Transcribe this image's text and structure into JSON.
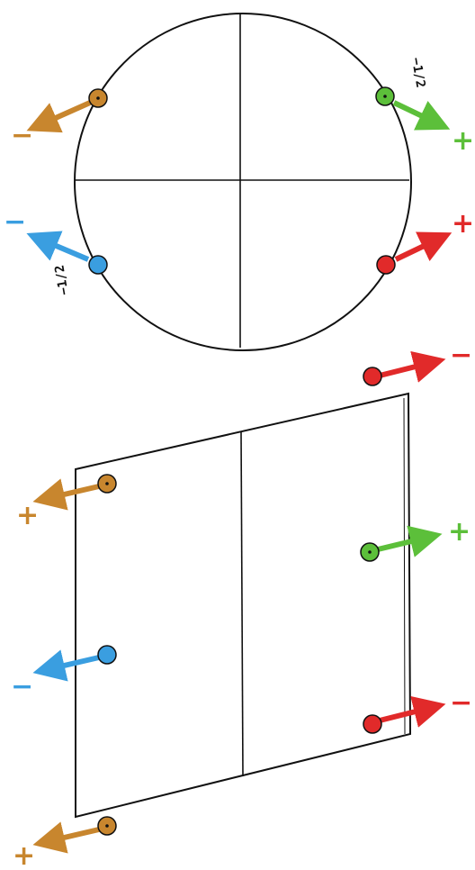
{
  "colors": {
    "orange": "#c8862e",
    "green": "#5cbf3a",
    "blue": "#3a9ee0",
    "red": "#e12a2a",
    "ink": "#111111"
  },
  "circle_view": {
    "labels": {
      "orange_sign": "−",
      "green_sign": "+",
      "blue_sign": "−",
      "red_sign": "+",
      "green_note": "−1/2",
      "blue_note": "−1/2"
    }
  },
  "parallelogram_view": {
    "labels": {
      "red_top_sign": "−",
      "orange_upper_sign": "+",
      "green_sign": "+",
      "blue_sign": "−",
      "red_lower_sign": "−",
      "orange_lower_sign": "+"
    }
  }
}
